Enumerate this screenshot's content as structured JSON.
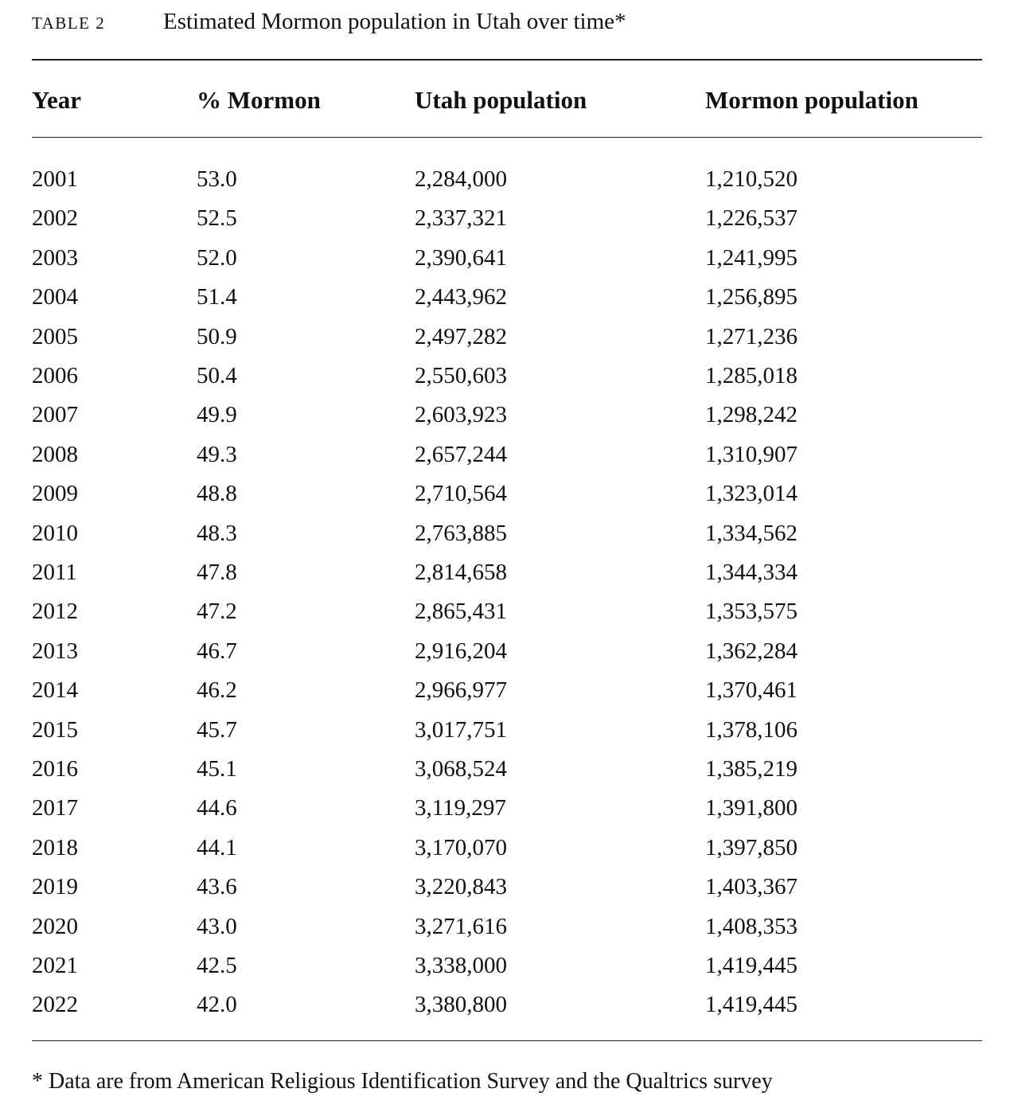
{
  "table": {
    "label": "TABLE 2",
    "title": "Estimated Mormon population in Utah over time*",
    "headers": [
      "Year",
      "% Mormon",
      "Utah population",
      "Mormon population"
    ],
    "rows": [
      [
        "2001",
        "53.0",
        "2,284,000",
        "1,210,520"
      ],
      [
        "2002",
        "52.5",
        "2,337,321",
        "1,226,537"
      ],
      [
        "2003",
        "52.0",
        "2,390,641",
        "1,241,995"
      ],
      [
        "2004",
        "51.4",
        "2,443,962",
        "1,256,895"
      ],
      [
        "2005",
        "50.9",
        "2,497,282",
        "1,271,236"
      ],
      [
        "2006",
        "50.4",
        "2,550,603",
        "1,285,018"
      ],
      [
        "2007",
        "49.9",
        "2,603,923",
        "1,298,242"
      ],
      [
        "2008",
        "49.3",
        "2,657,244",
        "1,310,907"
      ],
      [
        "2009",
        "48.8",
        "2,710,564",
        "1,323,014"
      ],
      [
        "2010",
        "48.3",
        "2,763,885",
        "1,334,562"
      ],
      [
        "2011",
        "47.8",
        "2,814,658",
        "1,344,334"
      ],
      [
        "2012",
        "47.2",
        "2,865,431",
        "1,353,575"
      ],
      [
        "2013",
        "46.7",
        "2,916,204",
        "1,362,284"
      ],
      [
        "2014",
        "46.2",
        "2,966,977",
        "1,370,461"
      ],
      [
        "2015",
        "45.7",
        "3,017,751",
        "1,378,106"
      ],
      [
        "2016",
        "45.1",
        "3,068,524",
        "1,385,219"
      ],
      [
        "2017",
        "44.6",
        "3,119,297",
        "1,391,800"
      ],
      [
        "2018",
        "44.1",
        "3,170,070",
        "1,397,850"
      ],
      [
        "2019",
        "43.6",
        "3,220,843",
        "1,403,367"
      ],
      [
        "2020",
        "43.0",
        "3,271,616",
        "1,408,353"
      ],
      [
        "2021",
        "42.5",
        "3,338,000",
        "1,419,445"
      ],
      [
        "2022",
        "42.0",
        "3,380,800",
        "1,419,445"
      ]
    ],
    "footnote": "* Data are from American Religious Identification Survey and the Qualtrics survey"
  }
}
